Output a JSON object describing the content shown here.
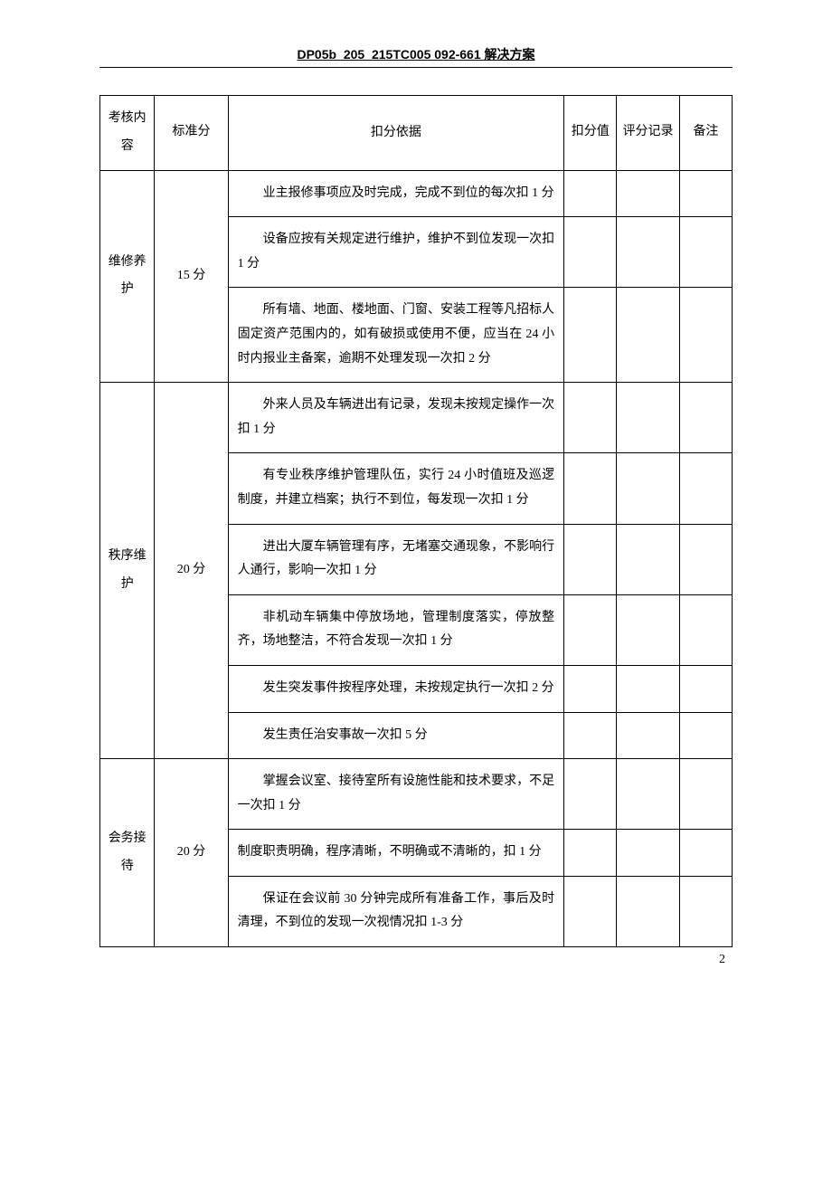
{
  "header": {
    "title": "DP05b_205_215TC005 092-661 解决方案"
  },
  "table": {
    "columns": {
      "category": "考核内容",
      "standard_score": "标准分",
      "basis": "扣分依据",
      "deduct_value": "扣分值",
      "record": "评分记录",
      "note": "备注"
    },
    "sections": [
      {
        "category": "维修养护",
        "score": "15 分",
        "items": [
          "业主报修事项应及时完成，完成不到位的每次扣 1 分",
          "设备应按有关规定进行维护，维护不到位发现一次扣 1 分",
          "所有墙、地面、楼地面、门窗、安装工程等凡招标人固定资产范围内的，如有破损或使用不便，应当在 24 小时内报业主备案，逾期不处理发现一次扣 2 分"
        ]
      },
      {
        "category": "秩序维护",
        "score": "20 分",
        "items": [
          "外来人员及车辆进出有记录，发现未按规定操作一次扣 1 分",
          "有专业秩序维护管理队伍，实行 24 小时值班及巡逻制度，并建立档案；执行不到位，每发现一次扣 1 分",
          "进出大厦车辆管理有序，无堵塞交通现象，不影响行人通行，影响一次扣 1 分",
          "非机动车辆集中停放场地，管理制度落实，停放整齐，场地整洁，不符合发现一次扣 1 分",
          "发生突发事件按程序处理，未按规定执行一次扣 2 分",
          "发生责任治安事故一次扣 5 分"
        ]
      },
      {
        "category": "会务接待",
        "score": "20 分",
        "items": [
          "掌握会议室、接待室所有设施性能和技术要求，不足一次扣 1 分",
          "制度职责明确，程序清晰，不明确或不清晰的，扣 1 分",
          "保证在会议前 30 分钟完成所有准备工作，事后及时清理，不到位的发现一次视情况扣 1-3 分"
        ]
      }
    ]
  },
  "page_number": "2"
}
